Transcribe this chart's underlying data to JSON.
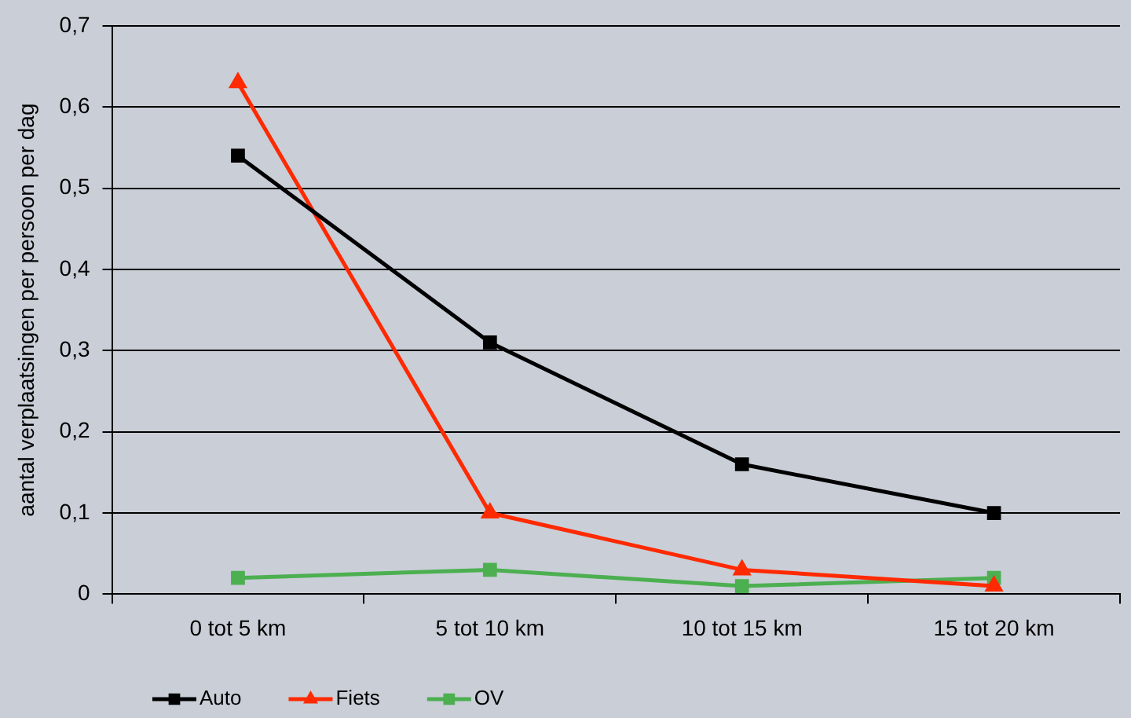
{
  "chart_data": {
    "type": "line",
    "ylabel": "aantal verplaatsingen per persoon per dag",
    "categories": [
      "0 tot 5 km",
      "5 tot 10 km",
      "10 tot 15 km",
      "15 tot 20 km"
    ],
    "series": [
      {
        "name": "Auto",
        "color": "#000000",
        "marker": "square",
        "values": [
          0.54,
          0.31,
          0.16,
          0.1
        ]
      },
      {
        "name": "Fiets",
        "color": "#ff2a00",
        "marker": "triangle",
        "values": [
          0.63,
          0.1,
          0.03,
          0.01
        ]
      },
      {
        "name": "OV",
        "color": "#4caf50",
        "marker": "square",
        "values": [
          0.02,
          0.03,
          0.01,
          0.02
        ]
      }
    ],
    "ylim": [
      0,
      0.7
    ],
    "yticks": [
      {
        "value": 0,
        "label": "0"
      },
      {
        "value": 0.1,
        "label": "0,1"
      },
      {
        "value": 0.2,
        "label": "0,2"
      },
      {
        "value": 0.3,
        "label": "0,3"
      },
      {
        "value": 0.4,
        "label": "0,4"
      },
      {
        "value": 0.5,
        "label": "0,5"
      },
      {
        "value": 0.6,
        "label": "0,6"
      },
      {
        "value": 0.7,
        "label": "0,7"
      }
    ],
    "grid": "y",
    "legend": "bottom left",
    "line_style": "solid"
  }
}
